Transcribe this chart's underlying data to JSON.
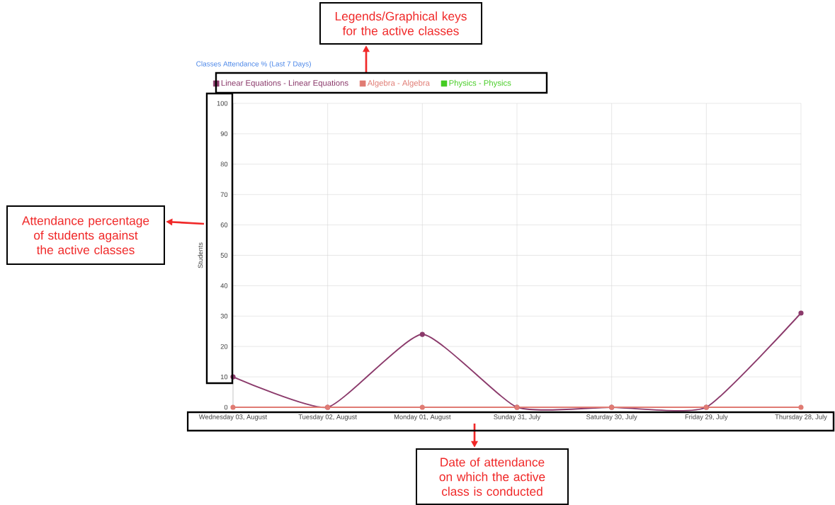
{
  "chart_data": {
    "type": "line",
    "title": "Classes Attendance % (Last 7 Days)",
    "ylabel": "Students",
    "categories": [
      "Wednesday 03, August",
      "Tuesday 02, August",
      "Monday 01, August",
      "Sunday 31, July",
      "Saturday 30, July",
      "Friday 29, July",
      "Thursday 28, July"
    ],
    "series": [
      {
        "name": "Linear Equations - Linear Equations",
        "color": "#8b3a6b",
        "values": [
          10,
          0,
          24,
          0,
          0,
          0,
          31
        ]
      },
      {
        "name": "Algebra - Algebra",
        "color": "#e07b73",
        "values": [
          0,
          0,
          0,
          0,
          0,
          0,
          0
        ]
      },
      {
        "name": "Physics - Physics",
        "color": "#44cc22",
        "values": [
          null,
          null,
          null,
          null,
          null,
          null,
          null
        ]
      }
    ],
    "ylim": [
      0,
      100
    ],
    "yticks": [
      0,
      10,
      20,
      30,
      40,
      50,
      60,
      70,
      80,
      90,
      100
    ],
    "grid": true,
    "legend": "top",
    "marker": "circle",
    "line_style": "solid",
    "annotations": [
      "Legends/Graphical keys for the active classes",
      "Attendance percentage of students against the active classes",
      "Date of attendance on which the active class is conducted"
    ]
  }
}
